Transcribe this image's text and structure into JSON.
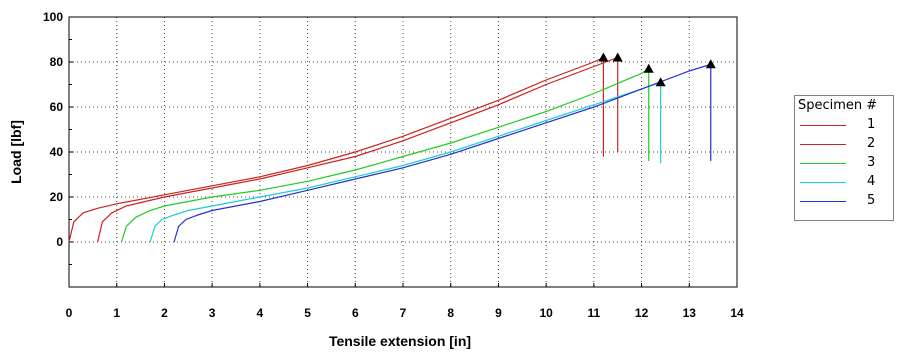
{
  "chart_data": {
    "type": "line",
    "xlabel": "Tensile extension [in]",
    "ylabel": "Load [lbf]",
    "xlim": [
      0,
      14
    ],
    "ylim": [
      -20,
      100
    ],
    "xticks": [
      "0",
      "1",
      "2",
      "3",
      "4",
      "5",
      "6",
      "7",
      "8",
      "9",
      "10",
      "11",
      "12",
      "13",
      "14"
    ],
    "yticks": [
      "100",
      "80",
      "60",
      "40",
      "20",
      "0"
    ],
    "grid": "dotted",
    "legend": {
      "title": "Specimen #",
      "position": "right"
    },
    "series": [
      {
        "name": "1",
        "color": "#cc2222",
        "x": [
          0,
          0.1,
          0.3,
          0.6,
          1,
          2,
          3,
          4,
          5,
          6,
          7,
          8,
          9,
          10,
          11,
          11.2
        ],
        "y": [
          0,
          9,
          13,
          15,
          17,
          21,
          25,
          29,
          34,
          40,
          47,
          55,
          63,
          72,
          80,
          82
        ],
        "drop_to": 38
      },
      {
        "name": "2",
        "color": "#cc2222",
        "x": [
          0.6,
          0.7,
          0.9,
          1.2,
          1.6,
          2,
          3,
          4,
          5,
          6,
          7,
          8,
          9,
          10,
          11,
          11.5
        ],
        "y": [
          0,
          9,
          13,
          16,
          18,
          20,
          24,
          28,
          33,
          38,
          45,
          53,
          61,
          70,
          78,
          82
        ],
        "drop_to": 40
      },
      {
        "name": "3",
        "color": "#22cc22",
        "x": [
          1.1,
          1.2,
          1.4,
          1.7,
          2,
          3,
          4,
          5,
          6,
          7,
          8,
          9,
          10,
          11,
          12,
          12.15
        ],
        "y": [
          0,
          7,
          11,
          14,
          16,
          20,
          23,
          27,
          32,
          38,
          44,
          51,
          58,
          66,
          75,
          77
        ],
        "drop_to": 36
      },
      {
        "name": "4",
        "color": "#22cccc",
        "x": [
          1.7,
          1.8,
          1.95,
          2.2,
          2.5,
          3,
          4,
          5,
          6,
          7,
          8,
          9,
          10,
          11,
          12,
          12.4
        ],
        "y": [
          0,
          7,
          10,
          12,
          14,
          16,
          20,
          24,
          29,
          34,
          40,
          47,
          54,
          61,
          68,
          71
        ],
        "drop_to": 35
      },
      {
        "name": "5",
        "color": "#2233cc",
        "x": [
          2.2,
          2.3,
          2.45,
          2.7,
          3,
          4,
          5,
          6,
          7,
          8,
          9,
          10,
          11,
          12,
          13,
          13.45
        ],
        "y": [
          0,
          7,
          10,
          12,
          14,
          18,
          23,
          28,
          33,
          39,
          46,
          53,
          60,
          68,
          76,
          79
        ],
        "drop_to": 36
      }
    ]
  }
}
